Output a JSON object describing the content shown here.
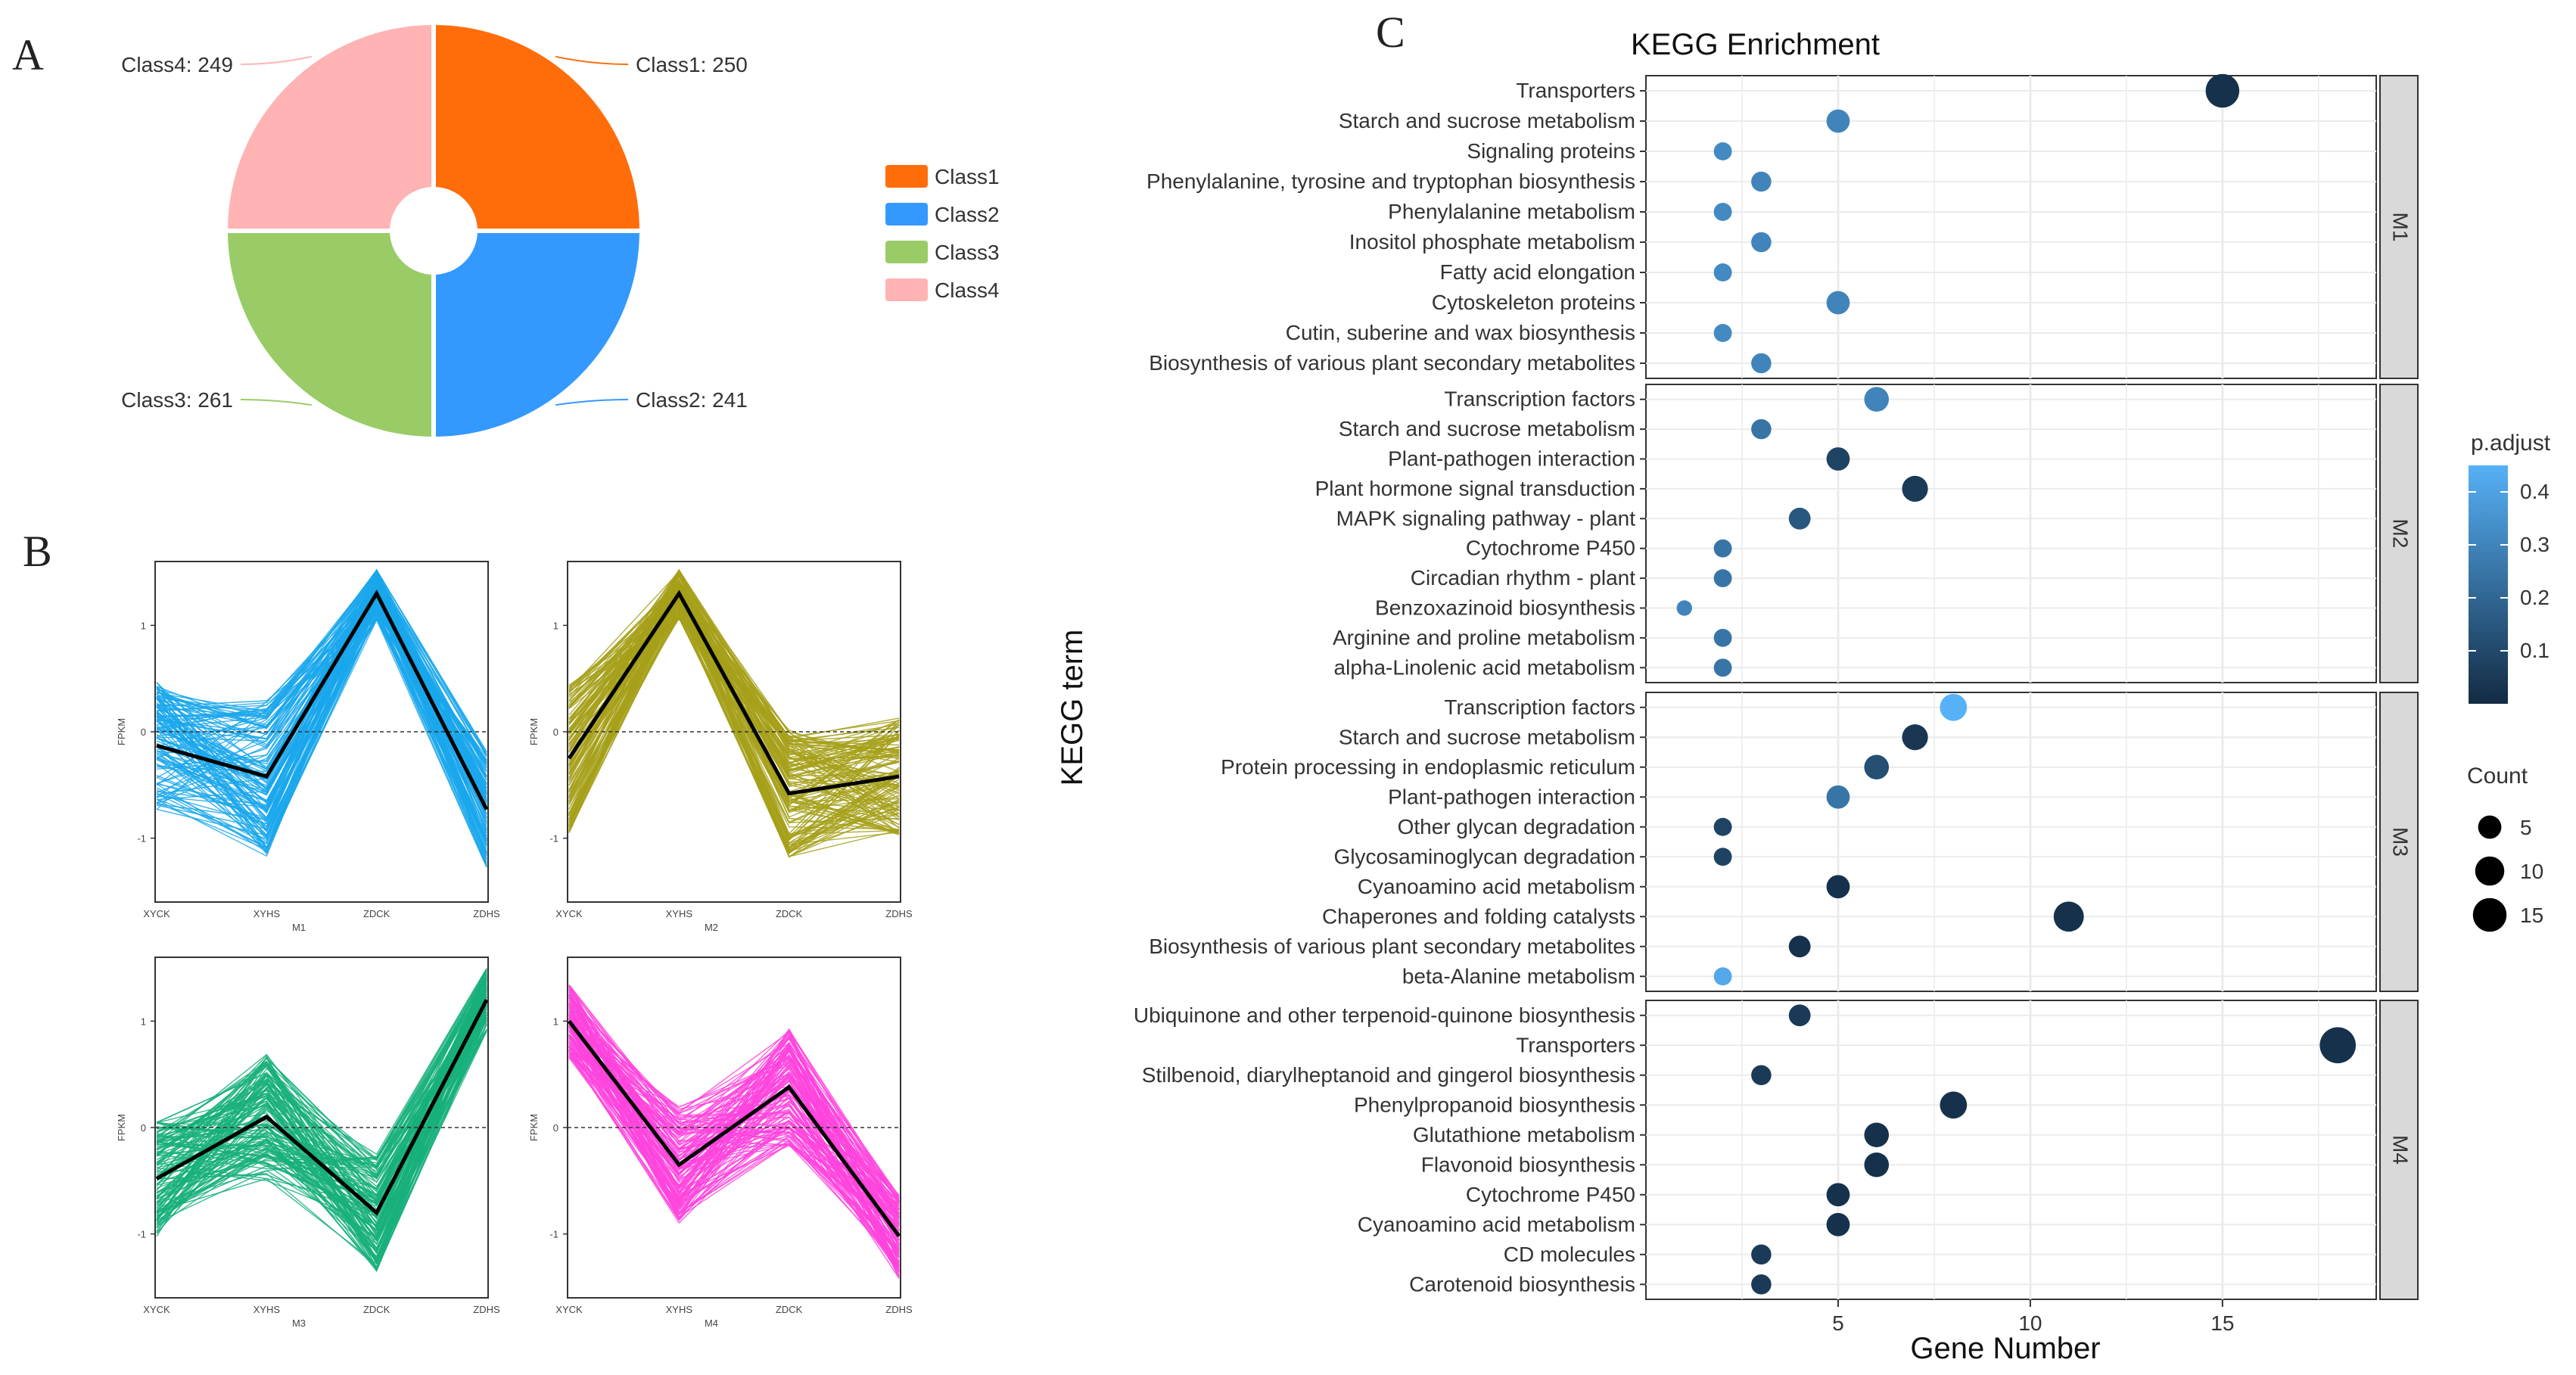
{
  "panels": {
    "a": "A",
    "b": "B",
    "c": "C"
  },
  "colors": {
    "class1": "#ff6d0a",
    "class2": "#3399ff",
    "class3": "#99cc66",
    "class4": "#ffb3b3",
    "m1": "#1aa7ec",
    "m2": "#a6a01a",
    "m3": "#18b07a",
    "m4": "#ff44dd",
    "padj_low": "#132b43",
    "padj_high": "#56b1f7"
  },
  "pie": {
    "type": "pie",
    "slices": [
      {
        "label": "Class1",
        "value": 250,
        "callout": "Class1: 250",
        "color": "#ff6d0a"
      },
      {
        "label": "Class2",
        "value": 241,
        "callout": "Class2: 241",
        "color": "#3399ff"
      },
      {
        "label": "Class3",
        "value": 261,
        "callout": "Class3: 261",
        "color": "#99cc66"
      },
      {
        "label": "Class4",
        "value": 249,
        "callout": "Class4: 249",
        "color": "#ffb3b3"
      }
    ],
    "legend": [
      "Class1",
      "Class2",
      "Class3",
      "Class4"
    ]
  },
  "profiles": {
    "type": "line",
    "x": [
      "XYCK",
      "XYHS",
      "ZDCK",
      "ZDHS"
    ],
    "ylabel": "FPKM",
    "yticks": [
      1,
      0,
      -1
    ],
    "ylim": [
      -1.6,
      1.6
    ],
    "plots": [
      {
        "name": "M1",
        "color": "#1aa7ec",
        "mean": [
          -0.13,
          -0.42,
          1.3,
          -0.73
        ],
        "spread": [
          0.6,
          0.75,
          0.25,
          0.55
        ]
      },
      {
        "name": "M2",
        "color": "#a6a01a",
        "mean": [
          -0.25,
          1.3,
          -0.58,
          -0.42
        ],
        "spread": [
          0.7,
          0.25,
          0.6,
          0.55
        ]
      },
      {
        "name": "M3",
        "color": "#18b07a",
        "mean": [
          -0.48,
          0.1,
          -0.8,
          1.2
        ],
        "spread": [
          0.55,
          0.6,
          0.55,
          0.3
        ]
      },
      {
        "name": "M4",
        "color": "#ff44dd",
        "mean": [
          1.0,
          -0.35,
          0.38,
          -1.02
        ],
        "spread": [
          0.35,
          0.55,
          0.55,
          0.4
        ]
      }
    ]
  },
  "kegg": {
    "type": "scatter",
    "title": "KEGG Enrichment",
    "xlabel": "Gene Number",
    "ylabel": "KEGG term",
    "xticks": [
      5,
      10,
      15
    ],
    "xlim": [
      0,
      19
    ],
    "facets": [
      {
        "name": "M1",
        "terms": [
          {
            "term": "Transporters",
            "count": 15,
            "padj": 0.02
          },
          {
            "term": "Starch and sucrose metabolism",
            "count": 5,
            "padj": 0.3
          },
          {
            "term": "Signaling proteins",
            "count": 2,
            "padj": 0.32
          },
          {
            "term": "Phenylalanine, tyrosine and tryptophan biosynthesis",
            "count": 3,
            "padj": 0.3
          },
          {
            "term": "Phenylalanine metabolism",
            "count": 2,
            "padj": 0.32
          },
          {
            "term": "Inositol phosphate metabolism",
            "count": 3,
            "padj": 0.3
          },
          {
            "term": "Fatty acid elongation",
            "count": 2,
            "padj": 0.32
          },
          {
            "term": "Cytoskeleton proteins",
            "count": 5,
            "padj": 0.3
          },
          {
            "term": "Cutin, suberine and wax biosynthesis",
            "count": 2,
            "padj": 0.32
          },
          {
            "term": "Biosynthesis of various plant secondary metabolites",
            "count": 3,
            "padj": 0.3
          }
        ]
      },
      {
        "name": "M2",
        "terms": [
          {
            "term": "Transcription factors",
            "count": 6,
            "padj": 0.3
          },
          {
            "term": "Starch and sucrose metabolism",
            "count": 3,
            "padj": 0.25
          },
          {
            "term": "Plant-pathogen interaction",
            "count": 5,
            "padj": 0.08
          },
          {
            "term": "Plant hormone signal transduction",
            "count": 7,
            "padj": 0.05
          },
          {
            "term": "MAPK signaling pathway - plant",
            "count": 4,
            "padj": 0.15
          },
          {
            "term": "Cytochrome P450",
            "count": 2,
            "padj": 0.25
          },
          {
            "term": "Circadian rhythm - plant",
            "count": 2,
            "padj": 0.25
          },
          {
            "term": "Benzoxazinoid biosynthesis",
            "count": 1,
            "padj": 0.3
          },
          {
            "term": "Arginine and proline metabolism",
            "count": 2,
            "padj": 0.25
          },
          {
            "term": "alpha-Linolenic acid metabolism",
            "count": 2,
            "padj": 0.25
          }
        ]
      },
      {
        "name": "M3",
        "terms": [
          {
            "term": "Transcription factors",
            "count": 8,
            "padj": 0.45
          },
          {
            "term": "Starch and sucrose metabolism",
            "count": 7,
            "padj": 0.04
          },
          {
            "term": "Protein processing in endoplasmic reticulum",
            "count": 6,
            "padj": 0.12
          },
          {
            "term": "Plant-pathogen interaction",
            "count": 5,
            "padj": 0.25
          },
          {
            "term": "Other glycan degradation",
            "count": 2,
            "padj": 0.08
          },
          {
            "term": "Glycosaminoglycan degradation",
            "count": 2,
            "padj": 0.08
          },
          {
            "term": "Cyanoamino acid metabolism",
            "count": 5,
            "padj": 0.02
          },
          {
            "term": "Chaperones and folding catalysts",
            "count": 11,
            "padj": 0.02
          },
          {
            "term": "Biosynthesis of various plant secondary metabolites",
            "count": 4,
            "padj": 0.02
          },
          {
            "term": "beta-Alanine metabolism",
            "count": 2,
            "padj": 0.42
          }
        ]
      },
      {
        "name": "M4",
        "terms": [
          {
            "term": "Ubiquinone and other terpenoid-quinone biosynthesis",
            "count": 4,
            "padj": 0.05
          },
          {
            "term": "Transporters",
            "count": 18,
            "padj": 0.02
          },
          {
            "term": "Stilbenoid, diarylheptanoid and gingerol biosynthesis",
            "count": 3,
            "padj": 0.05
          },
          {
            "term": "Phenylpropanoid biosynthesis",
            "count": 8,
            "padj": 0.02
          },
          {
            "term": "Glutathione metabolism",
            "count": 6,
            "padj": 0.02
          },
          {
            "term": "Flavonoid biosynthesis",
            "count": 6,
            "padj": 0.02
          },
          {
            "term": "Cytochrome P450",
            "count": 5,
            "padj": 0.02
          },
          {
            "term": "Cyanoamino acid metabolism",
            "count": 5,
            "padj": 0.02
          },
          {
            "term": "CD molecules",
            "count": 3,
            "padj": 0.05
          },
          {
            "term": "Carotenoid biosynthesis",
            "count": 3,
            "padj": 0.05
          }
        ]
      }
    ],
    "legend_padj": {
      "title": "p.adjust",
      "ticks": [
        "0.4",
        "0.3",
        "0.2",
        "0.1"
      ],
      "tick_values": [
        0.4,
        0.3,
        0.2,
        0.1
      ],
      "range": [
        0.0,
        0.45
      ]
    },
    "legend_count": {
      "title": "Count",
      "ticks": [
        "5",
        "10",
        "15"
      ],
      "tick_values": [
        5,
        10,
        15
      ]
    }
  }
}
